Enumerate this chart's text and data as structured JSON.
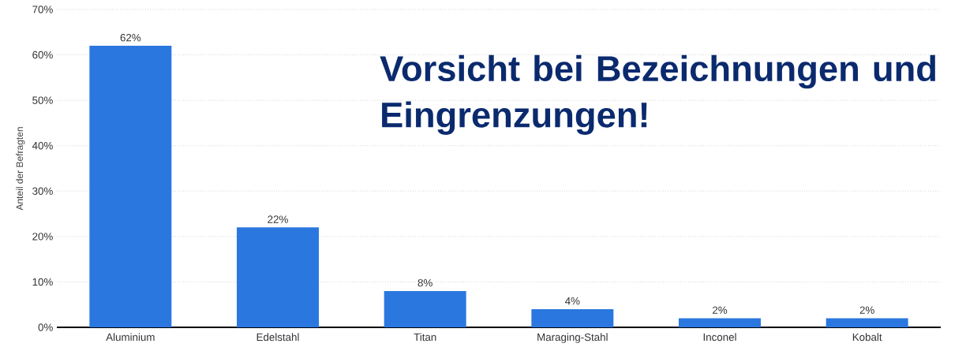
{
  "chart_data": {
    "type": "bar",
    "ylabel": "Anteil der Befragten",
    "categories": [
      "Aluminium",
      "Edelstahl",
      "Titan",
      "Maraging-Stahl",
      "Inconel",
      "Kobalt"
    ],
    "values": [
      62,
      22,
      8,
      4,
      2,
      2
    ],
    "value_labels": [
      "62%",
      "22%",
      "8%",
      "4%",
      "2%",
      "2%"
    ],
    "color": "#2a77df",
    "ylim": [
      0,
      70
    ],
    "yticks": [
      {
        "value": 0,
        "label": "0%"
      },
      {
        "value": 10,
        "label": "10%"
      },
      {
        "value": 20,
        "label": "20%"
      },
      {
        "value": 30,
        "label": "30%"
      },
      {
        "value": 40,
        "label": "40%"
      },
      {
        "value": 50,
        "label": "50%"
      },
      {
        "value": 60,
        "label": "60%"
      },
      {
        "value": 70,
        "label": "70%"
      }
    ],
    "grid": "y",
    "annotations": [
      "Vorsicht bei Bezeichnungen und Eingrenzungen!"
    ]
  }
}
